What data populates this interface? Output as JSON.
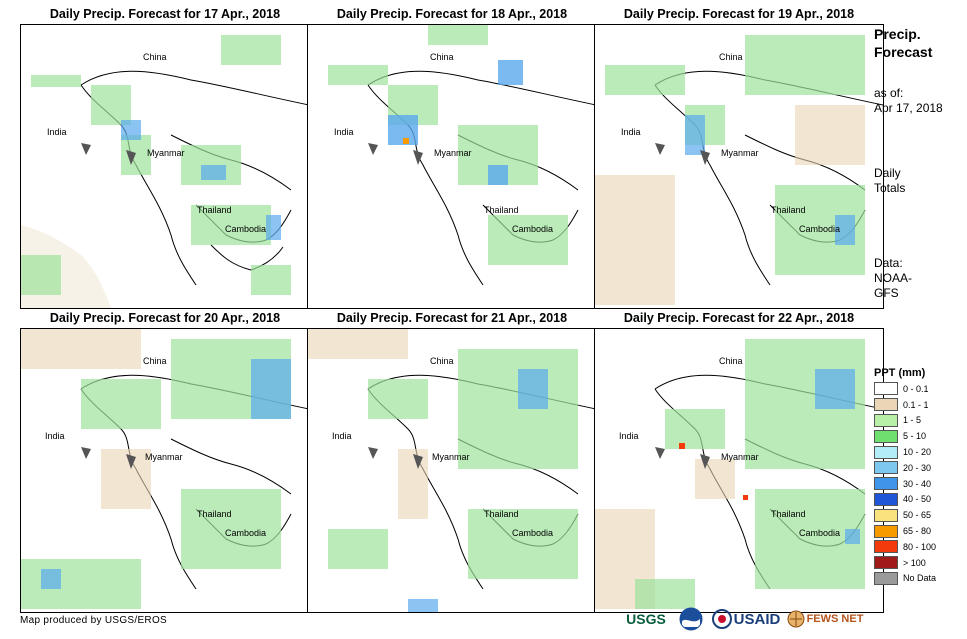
{
  "panels": [
    {
      "title": "Daily Precip. Forecast for 17 Apr., 2018",
      "labels": {
        "china": "China",
        "india": "India",
        "myanmar": "Myanmar",
        "thailand": "Thailand",
        "cambodia": "Cambodia"
      }
    },
    {
      "title": "Daily Precip. Forecast for 18 Apr., 2018",
      "labels": {
        "china": "China",
        "india": "India",
        "myanmar": "Myanmar",
        "thailand": "Thailand",
        "cambodia": "Cambodia"
      }
    },
    {
      "title": "Daily Precip. Forecast for 19 Apr., 2018",
      "labels": {
        "china": "China",
        "india": "India",
        "myanmar": "Myanmar",
        "thailand": "Thailand",
        "cambodia": "Cambodia"
      }
    },
    {
      "title": "Daily Precip. Forecast for 20 Apr., 2018",
      "labels": {
        "china": "China",
        "india": "India",
        "myanmar": "Myanmar",
        "thailand": "Thailand",
        "cambodia": "Cambodia"
      }
    },
    {
      "title": "Daily Precip. Forecast for 21 Apr., 2018",
      "labels": {
        "china": "China",
        "india": "India",
        "myanmar": "Myanmar",
        "thailand": "Thailand",
        "cambodia": "Cambodia"
      }
    },
    {
      "title": "Daily Precip. Forecast for 22 Apr., 2018",
      "labels": {
        "china": "China",
        "india": "India",
        "myanmar": "Myanmar",
        "thailand": "Thailand",
        "cambodia": "Cambodia"
      }
    }
  ],
  "sidebar": {
    "title_line1": "Precip.",
    "title_line2": "Forecast",
    "asof_label": "as of:",
    "asof_date": "Apr 17, 2018",
    "totals_line1": "Daily",
    "totals_line2": "Totals",
    "data_label": "Data:",
    "data_source_line1": "NOAA-",
    "data_source_line2": "GFS"
  },
  "legend": {
    "title": "PPT (mm)",
    "items": [
      {
        "label": "0 - 0.1",
        "color": "#ffffff"
      },
      {
        "label": "0.1 - 1",
        "color": "#ead6b6"
      },
      {
        "label": "1 - 5",
        "color": "#b9f0a8"
      },
      {
        "label": "5 - 10",
        "color": "#6fe06f"
      },
      {
        "label": "10 - 20",
        "color": "#b3eef8"
      },
      {
        "label": "20 - 30",
        "color": "#7dc8ee"
      },
      {
        "label": "30 - 40",
        "color": "#3f95ea"
      },
      {
        "label": "40 - 50",
        "color": "#1f56d8"
      },
      {
        "label": "50 - 65",
        "color": "#fae27e"
      },
      {
        "label": "65 - 80",
        "color": "#f79a00"
      },
      {
        "label": "80 - 100",
        "color": "#f23a0c"
      },
      {
        "label": "> 100",
        "color": "#a11a1a"
      },
      {
        "label": "No Data",
        "color": "#9a9a9a"
      }
    ]
  },
  "footer": {
    "credit": "Map produced by USGS/EROS",
    "logo_usgs": "USGS",
    "logo_usaid": "USAID",
    "logo_fewsnet": "FEWS NET"
  }
}
